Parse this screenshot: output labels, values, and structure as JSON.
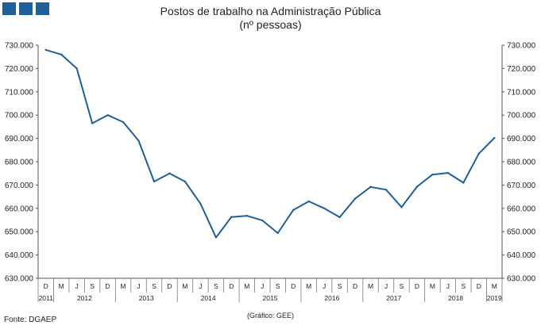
{
  "header": {
    "title": "Postos de trabalho na Administração  Pública",
    "subtitle": "(nº pessoas)",
    "badge_color": "#1f5f9a"
  },
  "footer": {
    "source": "Fonte:  DGAEP",
    "credit": "(Gráfico:  GEE)"
  },
  "chart_data": {
    "type": "line",
    "line_color": "#1f5f9a",
    "x": [
      "D",
      "M",
      "J",
      "S",
      "D",
      "M",
      "J",
      "S",
      "D",
      "M",
      "J",
      "S",
      "D",
      "M",
      "J",
      "S",
      "D",
      "M",
      "J",
      "S",
      "D",
      "M",
      "J",
      "S",
      "D",
      "M",
      "J",
      "S",
      "D",
      "M"
    ],
    "years": [
      {
        "label": "2011",
        "first_index": 0,
        "last_index": 0
      },
      {
        "label": "2012",
        "first_index": 1,
        "last_index": 4
      },
      {
        "label": "2013",
        "first_index": 5,
        "last_index": 8
      },
      {
        "label": "2014",
        "first_index": 9,
        "last_index": 12
      },
      {
        "label": "2015",
        "first_index": 13,
        "last_index": 16
      },
      {
        "label": "2016",
        "first_index": 17,
        "last_index": 20
      },
      {
        "label": "2017",
        "first_index": 21,
        "last_index": 24
      },
      {
        "label": "2018",
        "first_index": 25,
        "last_index": 28
      },
      {
        "label": "2019",
        "first_index": 29,
        "last_index": 29
      }
    ],
    "values": [
      728000,
      726000,
      720000,
      696500,
      700000,
      697000,
      689000,
      671500,
      675000,
      671500,
      662000,
      647500,
      656300,
      656800,
      654800,
      649400,
      659300,
      663000,
      660000,
      656200,
      664200,
      669200,
      668000,
      660500,
      669300,
      674500,
      675200,
      671000,
      683500,
      690200
    ],
    "ylim": [
      630000,
      730000
    ],
    "yticks": [
      "630.000",
      "640.000",
      "650.000",
      "660.000",
      "670.000",
      "680.000",
      "690.000",
      "700.000",
      "710.000",
      "720.000",
      "730.000"
    ],
    "grid": false,
    "legend": "none"
  }
}
